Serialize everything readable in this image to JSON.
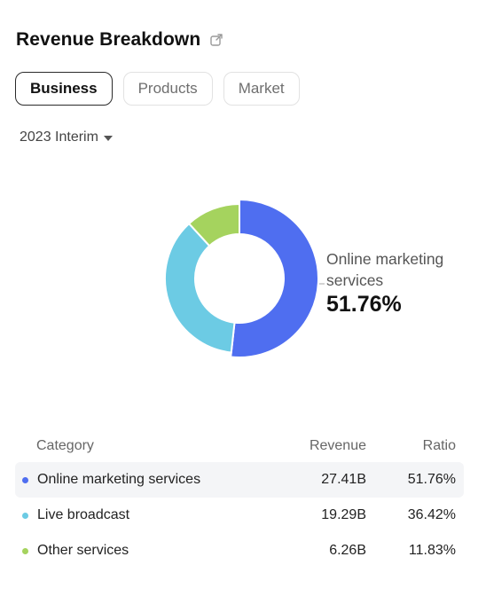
{
  "header": {
    "title": "Revenue Breakdown"
  },
  "tabs": [
    {
      "label": "Business",
      "active": true
    },
    {
      "label": "Products",
      "active": false
    },
    {
      "label": "Market",
      "active": false
    }
  ],
  "period": {
    "label": "2023 Interim"
  },
  "callout": {
    "label": "Online marketing services",
    "value": "51.76%"
  },
  "table": {
    "headers": {
      "category": "Category",
      "revenue": "Revenue",
      "ratio": "Ratio"
    },
    "rows": [
      {
        "category": "Online marketing services",
        "revenue": "27.41B",
        "ratio": "51.76%",
        "color": "#4f6ef0"
      },
      {
        "category": "Live broadcast",
        "revenue": "19.29B",
        "ratio": "36.42%",
        "color": "#6ccbe4"
      },
      {
        "category": "Other services",
        "revenue": "6.26B",
        "ratio": "11.83%",
        "color": "#a5d35e"
      }
    ]
  },
  "chart_data": {
    "type": "pie",
    "categories": [
      "Online marketing services",
      "Live broadcast",
      "Other services"
    ],
    "values": [
      51.76,
      36.42,
      11.83
    ],
    "colors": [
      "#4f6ef0",
      "#6ccbe4",
      "#a5d35e"
    ],
    "title": ""
  }
}
